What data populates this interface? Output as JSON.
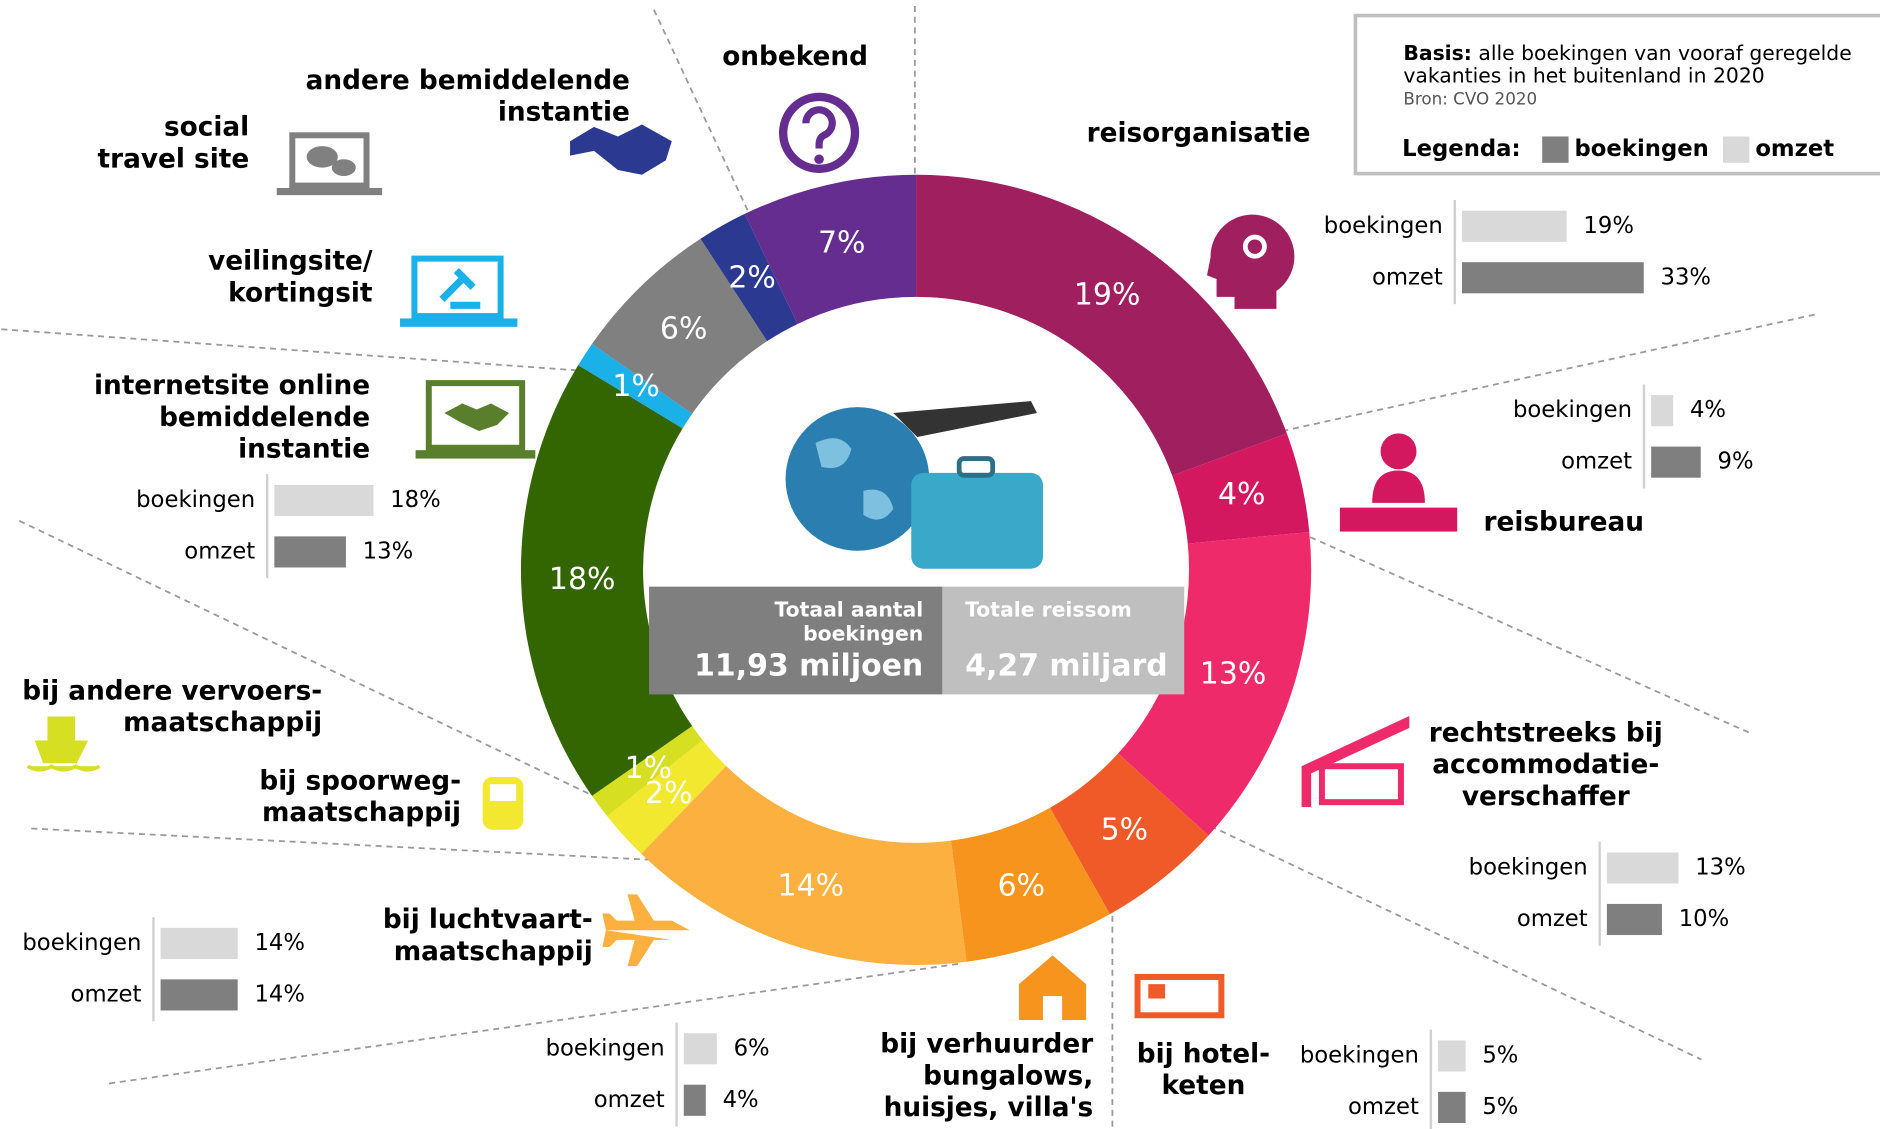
{
  "chart_data": {
    "type": "donut",
    "categories": [
      [
        "reisorganisatie"
      ],
      [
        "reisbureau"
      ],
      [
        "rechtstreeks bij",
        "accommodatie-",
        "verschaffer"
      ],
      [
        "bij hotel-",
        "keten"
      ],
      [
        "bij verhuurder",
        "bungalows,",
        "huisjes, villa's"
      ],
      [
        "bij luchtvaart-",
        "maatschappij"
      ],
      [
        "bij spoorweg-",
        "maatschappij"
      ],
      [
        "bij andere vervoers-",
        "maatschappij"
      ],
      [
        "internetsite online",
        "bemiddelende",
        "instantie"
      ],
      [
        "veilingsite/",
        "kortingsit"
      ],
      [
        "social",
        "travel site"
      ],
      [
        "andere bemiddelende",
        "instantie"
      ],
      [
        "onbekend"
      ]
    ],
    "values": [
      19,
      4,
      13,
      5,
      6,
      14,
      2,
      1,
      18,
      1,
      6,
      2,
      7
    ],
    "value_labels": [
      "19%",
      "4%",
      "13%",
      "5%",
      "6%",
      "14%",
      "2%",
      "1%",
      "18%",
      "1%",
      "6%",
      "2%",
      "7%"
    ],
    "colors": [
      "#a01f5e",
      "#d4185f",
      "#ee2a6b",
      "#f05a28",
      "#f7941d",
      "#fbb040",
      "#f2e830",
      "#d7df23",
      "#336600",
      "#1ab0e8",
      "#808080",
      "#2b3990",
      "#662d91"
    ],
    "bar_charts": [
      {
        "categories": [
          "boekingen",
          "omzet"
        ],
        "values": [
          19,
          33
        ],
        "value_labels": [
          "19%",
          "33%"
        ],
        "colors": [
          "#d9d9d9",
          "#7f7f7f"
        ]
      },
      {
        "categories": [
          "boekingen",
          "omzet"
        ],
        "values": [
          4,
          9
        ],
        "value_labels": [
          "4%",
          "9%"
        ],
        "colors": [
          "#d9d9d9",
          "#7f7f7f"
        ]
      },
      {
        "categories": [
          "boekingen",
          "omzet"
        ],
        "values": [
          13,
          10
        ],
        "value_labels": [
          "13%",
          "10%"
        ],
        "colors": [
          "#d9d9d9",
          "#7f7f7f"
        ]
      },
      {
        "categories": [
          "boekingen",
          "omzet"
        ],
        "values": [
          5,
          5
        ],
        "value_labels": [
          "5%",
          "5%"
        ],
        "colors": [
          "#d9d9d9",
          "#7f7f7f"
        ]
      },
      {
        "categories": [
          "boekingen",
          "omzet"
        ],
        "values": [
          6,
          4
        ],
        "value_labels": [
          "6%",
          "4%"
        ],
        "colors": [
          "#d9d9d9",
          "#7f7f7f"
        ]
      },
      {
        "categories": [
          "boekingen",
          "omzet"
        ],
        "values": [
          14,
          14
        ],
        "value_labels": [
          "14%",
          "14%"
        ],
        "colors": [
          "#d9d9d9",
          "#7f7f7f"
        ]
      },
      {
        "categories": [
          "boekingen",
          "omzet"
        ],
        "values": [
          18,
          13
        ],
        "value_labels": [
          "18%",
          "13%"
        ],
        "colors": [
          "#d9d9d9",
          "#7f7f7f"
        ]
      }
    ],
    "center": {
      "left_title": [
        "Totaal aantal",
        "boekingen"
      ],
      "left_value": "11,93 miljoen",
      "right_title": [
        "Totale reissom"
      ],
      "right_value": "4,27 miljard"
    },
    "note": {
      "bold": "Basis:",
      "lines": [
        "alle boekingen van vooraf geregelde",
        "vakanties in het buitenland in 2020"
      ],
      "source": "Bron: CVO 2020"
    },
    "legend_title": "Legenda:",
    "legend": [
      {
        "name": "boekingen",
        "color": "#7f7f7f"
      },
      {
        "name": "omzet",
        "color": "#d9d9d9"
      }
    ]
  }
}
